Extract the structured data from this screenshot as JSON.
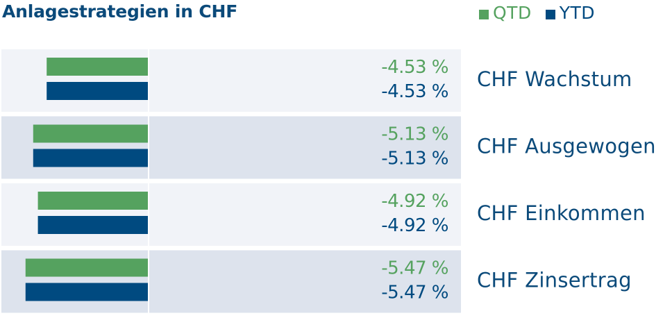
{
  "title": "Anlagestrategien in CHF",
  "legend": [
    {
      "label": "QTD",
      "color": "#55a25f"
    },
    {
      "label": "YTD",
      "color": "#004a80"
    }
  ],
  "text_color": "#0b4a7a",
  "row_colors": [
    "#f1f3f8",
    "#dde3ed"
  ],
  "chart_data": {
    "type": "bar",
    "orientation": "horizontal",
    "title": "Anlagestrategien in CHF",
    "categories": [
      "CHF Wachstum",
      "CHF Ausgewogen",
      "CHF Einkommen",
      "CHF Zinsertrag"
    ],
    "series": [
      {
        "name": "QTD",
        "color": "#55a25f",
        "values": [
          -4.53,
          -5.13,
          -4.92,
          -5.47
        ],
        "labels": [
          "-4.53 %",
          "-5.13 %",
          "-4.92 %",
          "-5.47 %"
        ]
      },
      {
        "name": "YTD",
        "color": "#004a80",
        "values": [
          -4.53,
          -5.13,
          -4.92,
          -5.47
        ],
        "labels": [
          "-4.53 %",
          "-5.13 %",
          "-4.92 %",
          "-5.47 %"
        ]
      }
    ],
    "legend_position": "top-right",
    "grid": false
  }
}
